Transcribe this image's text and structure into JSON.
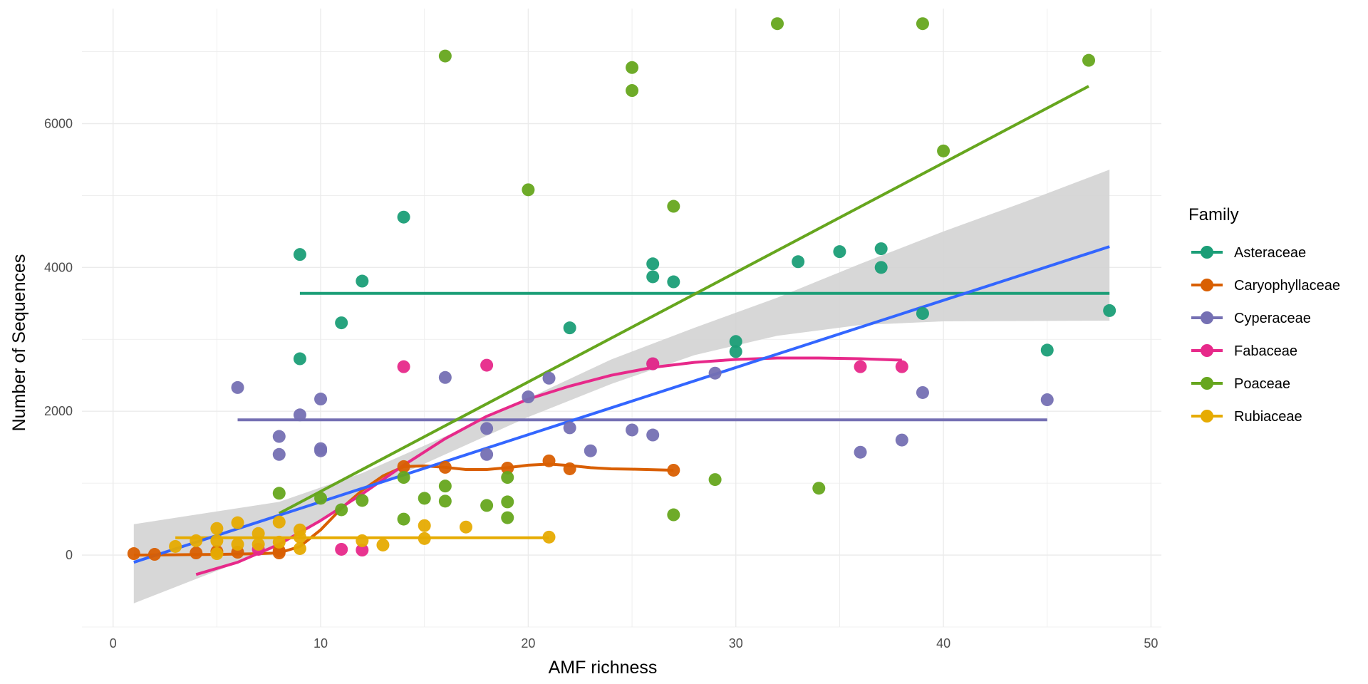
{
  "chart_data": {
    "type": "scatter",
    "xlabel": "AMF richness",
    "ylabel": "Number of Sequences",
    "xlim": [
      -1.5,
      50.5
    ],
    "ylim": [
      -1000,
      7600
    ],
    "x_ticks": [
      0,
      10,
      20,
      30,
      40,
      50
    ],
    "y_ticks": [
      0,
      2000,
      4000,
      6000
    ],
    "grid": true,
    "legend": {
      "title": "Family",
      "placement": "right"
    },
    "series": [
      {
        "name": "Asteraceae",
        "color": "#1b9e77",
        "points": [
          [
            9,
            4180
          ],
          [
            9,
            2730
          ],
          [
            11,
            3230
          ],
          [
            12,
            3810
          ],
          [
            14,
            4700
          ],
          [
            22,
            3160
          ],
          [
            26,
            4050
          ],
          [
            26,
            3870
          ],
          [
            27,
            3800
          ],
          [
            30,
            2970
          ],
          [
            30,
            2830
          ],
          [
            33,
            4080
          ],
          [
            35,
            4220
          ],
          [
            37,
            4260
          ],
          [
            37,
            4000
          ],
          [
            39,
            3360
          ],
          [
            45,
            2850
          ],
          [
            48,
            3400
          ]
        ],
        "fit": [
          [
            9,
            3640
          ],
          [
            48,
            3640
          ]
        ]
      },
      {
        "name": "Caryophyllaceae",
        "color": "#d95f02",
        "points": [
          [
            1,
            20
          ],
          [
            2,
            10
          ],
          [
            4,
            30
          ],
          [
            5,
            50
          ],
          [
            6,
            40
          ],
          [
            8,
            30
          ],
          [
            8,
            60
          ],
          [
            14,
            1230
          ],
          [
            16,
            1220
          ],
          [
            19,
            1210
          ],
          [
            21,
            1310
          ],
          [
            22,
            1200
          ],
          [
            27,
            1180
          ]
        ],
        "fit": [
          [
            1,
            0
          ],
          [
            3,
            5
          ],
          [
            5,
            10
          ],
          [
            7,
            20
          ],
          [
            8,
            30
          ],
          [
            9,
            120
          ],
          [
            10,
            350
          ],
          [
            11,
            650
          ],
          [
            12,
            900
          ],
          [
            13,
            1100
          ],
          [
            14,
            1230
          ],
          [
            15,
            1240
          ],
          [
            16,
            1220
          ],
          [
            17,
            1190
          ],
          [
            18,
            1190
          ],
          [
            19,
            1215
          ],
          [
            20,
            1250
          ],
          [
            21,
            1265
          ],
          [
            22,
            1245
          ],
          [
            23,
            1215
          ],
          [
            24,
            1200
          ],
          [
            25,
            1195
          ],
          [
            27,
            1180
          ]
        ]
      },
      {
        "name": "Cyperaceae",
        "color": "#7570b3",
        "points": [
          [
            6,
            2330
          ],
          [
            8,
            1650
          ],
          [
            8,
            1400
          ],
          [
            9,
            1950
          ],
          [
            10,
            2170
          ],
          [
            10,
            1480
          ],
          [
            10,
            1450
          ],
          [
            16,
            2470
          ],
          [
            18,
            1760
          ],
          [
            18,
            1400
          ],
          [
            20,
            2200
          ],
          [
            21,
            2460
          ],
          [
            22,
            1770
          ],
          [
            23,
            1450
          ],
          [
            25,
            1740
          ],
          [
            26,
            1670
          ],
          [
            26,
            2660
          ],
          [
            29,
            2530
          ],
          [
            36,
            1430
          ],
          [
            38,
            1600
          ],
          [
            39,
            2260
          ],
          [
            45,
            2160
          ]
        ],
        "fit": [
          [
            6,
            1880
          ],
          [
            45,
            1880
          ]
        ]
      },
      {
        "name": "Fabaceae",
        "color": "#e7298a",
        "points": [
          [
            7,
            80
          ],
          [
            11,
            80
          ],
          [
            12,
            70
          ],
          [
            14,
            2620
          ],
          [
            18,
            2640
          ],
          [
            26,
            2660
          ],
          [
            36,
            2620
          ],
          [
            38,
            2620
          ]
        ],
        "fit": [
          [
            4,
            -270
          ],
          [
            6,
            -100
          ],
          [
            8,
            150
          ],
          [
            10,
            480
          ],
          [
            12,
            850
          ],
          [
            14,
            1250
          ],
          [
            16,
            1620
          ],
          [
            18,
            1930
          ],
          [
            20,
            2170
          ],
          [
            22,
            2350
          ],
          [
            24,
            2500
          ],
          [
            26,
            2610
          ],
          [
            28,
            2680
          ],
          [
            30,
            2720
          ],
          [
            32,
            2740
          ],
          [
            34,
            2740
          ],
          [
            36,
            2730
          ],
          [
            38,
            2710
          ]
        ]
      },
      {
        "name": "Poaceae",
        "color": "#66a61e",
        "points": [
          [
            8,
            860
          ],
          [
            10,
            790
          ],
          [
            11,
            630
          ],
          [
            12,
            760
          ],
          [
            14,
            1080
          ],
          [
            14,
            500
          ],
          [
            15,
            790
          ],
          [
            16,
            6940
          ],
          [
            16,
            960
          ],
          [
            16,
            750
          ],
          [
            18,
            690
          ],
          [
            19,
            1080
          ],
          [
            19,
            740
          ],
          [
            19,
            520
          ],
          [
            20,
            5080
          ],
          [
            25,
            6780
          ],
          [
            25,
            6460
          ],
          [
            27,
            4850
          ],
          [
            27,
            560
          ],
          [
            29,
            1050
          ],
          [
            32,
            7390
          ],
          [
            34,
            930
          ],
          [
            39,
            7390
          ],
          [
            40,
            5620
          ],
          [
            47,
            6880
          ]
        ],
        "fit": [
          [
            8,
            580
          ],
          [
            47,
            6520
          ]
        ]
      },
      {
        "name": "Rubiaceae",
        "color": "#e6ab02",
        "points": [
          [
            3,
            120
          ],
          [
            4,
            200
          ],
          [
            5,
            370
          ],
          [
            5,
            200
          ],
          [
            5,
            20
          ],
          [
            6,
            450
          ],
          [
            6,
            150
          ],
          [
            7,
            300
          ],
          [
            7,
            150
          ],
          [
            8,
            460
          ],
          [
            8,
            180
          ],
          [
            9,
            350
          ],
          [
            9,
            250
          ],
          [
            9,
            90
          ],
          [
            12,
            200
          ],
          [
            13,
            140
          ],
          [
            15,
            410
          ],
          [
            15,
            230
          ],
          [
            17,
            390
          ],
          [
            21,
            250
          ]
        ],
        "fit": [
          [
            3,
            240
          ],
          [
            21,
            240
          ]
        ]
      }
    ],
    "overall_fit": {
      "color": "#3366ff",
      "band_color": "#d3d3d3",
      "line": [
        [
          1,
          -100
        ],
        [
          48,
          4290
        ]
      ],
      "band_lower": [
        [
          1,
          -670
        ],
        [
          8,
          120
        ],
        [
          12,
          880
        ],
        [
          16,
          1400
        ],
        [
          20,
          1920
        ],
        [
          24,
          2380
        ],
        [
          28,
          2780
        ],
        [
          32,
          3050
        ],
        [
          36,
          3200
        ],
        [
          40,
          3250
        ],
        [
          44,
          3255
        ],
        [
          48,
          3260
        ]
      ],
      "band_upper": [
        [
          1,
          430
        ],
        [
          8,
          740
        ],
        [
          12,
          1140
        ],
        [
          16,
          1650
        ],
        [
          20,
          2180
        ],
        [
          24,
          2720
        ],
        [
          28,
          3160
        ],
        [
          32,
          3580
        ],
        [
          36,
          4050
        ],
        [
          40,
          4500
        ],
        [
          44,
          4920
        ],
        [
          48,
          5360
        ]
      ]
    }
  }
}
